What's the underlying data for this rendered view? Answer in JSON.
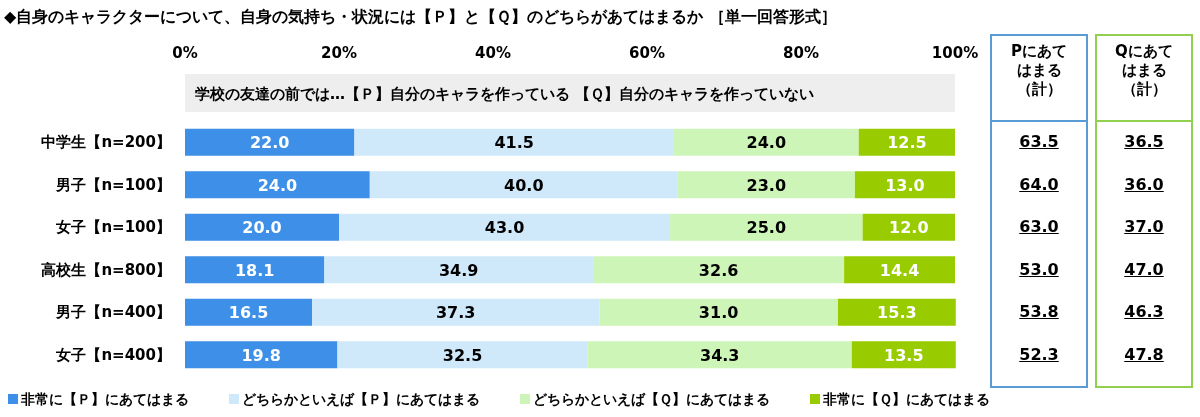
{
  "chart_data": [
    {
      "type": "bar",
      "orientation": "horizontal",
      "stacked": true,
      "legend": "bottom",
      "title": "◆自身のキャラクターについて、自身の気持ち・状況には【Ｐ】と【Ｑ】のどちらがあてはまるか ［単一回答形式］",
      "subtitle": "学校の友達の前では…【Ｐ】自分のキャラを作っている 【Ｑ】自分のキャラを作っていない",
      "categories": [
        "中学生【n=200】",
        "男子【n=100】",
        "女子【n=100】",
        "高校生【n=800】",
        "男子【n=400】",
        "女子【n=400】"
      ],
      "xlim": [
        0,
        100
      ],
      "xticks": [
        {
          "value": 0,
          "label": "0%"
        },
        {
          "value": 20,
          "label": "20%"
        },
        {
          "value": 40,
          "label": "40%"
        },
        {
          "value": 60,
          "label": "60%"
        },
        {
          "value": 80,
          "label": "80%"
        },
        {
          "value": 100,
          "label": "100%"
        }
      ],
      "series": [
        {
          "name": "非常に【Ｐ】にあてはまる",
          "color": "#3d8fe8",
          "values": [
            22.0,
            24.0,
            20.0,
            18.1,
            16.5,
            19.8
          ],
          "value_labels": [
            "22.0",
            "24.0",
            "20.0",
            "18.1",
            "16.5",
            "19.8"
          ]
        },
        {
          "name": "どちらかといえば【Ｐ】にあてはまる",
          "color": "#cfe9fa",
          "values": [
            41.5,
            40.0,
            43.0,
            34.9,
            37.3,
            32.5
          ],
          "value_labels": [
            "41.5",
            "40.0",
            "43.0",
            "34.9",
            "37.3",
            "32.5"
          ]
        },
        {
          "name": "どちらかといえば【Ｑ】にあてはまる",
          "color": "#cdf5b8",
          "values": [
            24.0,
            23.0,
            25.0,
            32.6,
            31.0,
            34.3
          ],
          "value_labels": [
            "24.0",
            "23.0",
            "25.0",
            "32.6",
            "31.0",
            "34.3"
          ]
        },
        {
          "name": "非常に【Ｑ】にあてはまる",
          "color": "#99cc00",
          "values": [
            12.5,
            13.0,
            12.0,
            14.4,
            15.3,
            13.5
          ],
          "value_labels": [
            "12.5",
            "13.0",
            "12.0",
            "14.4",
            "15.3",
            "13.5"
          ]
        }
      ]
    },
    {
      "type": "other",
      "title": "Pにあてはまる（計）",
      "annotations": [
        "63.5",
        "64.0",
        "63.0",
        "53.0",
        "53.8",
        "52.3"
      ]
    },
    {
      "type": "other",
      "title": "Qにあてはまる（計）",
      "annotations": [
        "36.5",
        "36.0",
        "37.0",
        "47.0",
        "46.3",
        "47.8"
      ]
    }
  ]
}
